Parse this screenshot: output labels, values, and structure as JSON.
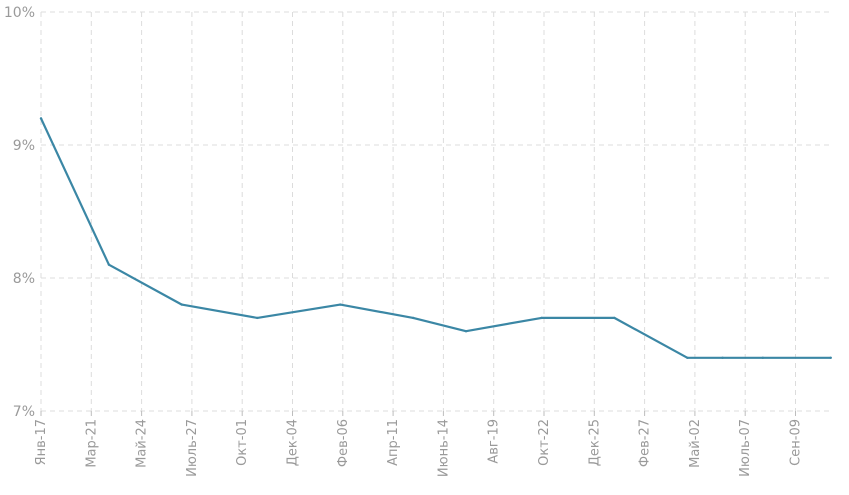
{
  "chart_data": {
    "type": "line",
    "title": "",
    "xlabel": "",
    "ylabel": "",
    "ylim": [
      7,
      10
    ],
    "yticks": [
      "7%",
      "8%",
      "9%",
      "10%"
    ],
    "xticks": [
      "Янв-17",
      "Мар-21",
      "Май-24",
      "Июль-27",
      "Окт-01",
      "Дек-04",
      "Фев-06",
      "Апр-11",
      "Июнь-14",
      "Авг-19",
      "Окт-22",
      "Дек-25",
      "Фев-27",
      "Май-02",
      "Июль-07",
      "Сен-09"
    ],
    "grid": true,
    "color": "#3b87a5",
    "series": [
      {
        "x": [
          0,
          1.35,
          2.8,
          4.3,
          5.95,
          7.4,
          8.45,
          9.95,
          11.4,
          12.85,
          13.55,
          14.35,
          15.7
        ],
        "values": [
          9.2,
          8.1,
          7.8,
          7.7,
          7.8,
          7.7,
          7.6,
          7.7,
          7.7,
          7.4,
          7.4,
          7.4,
          7.4
        ]
      }
    ]
  }
}
